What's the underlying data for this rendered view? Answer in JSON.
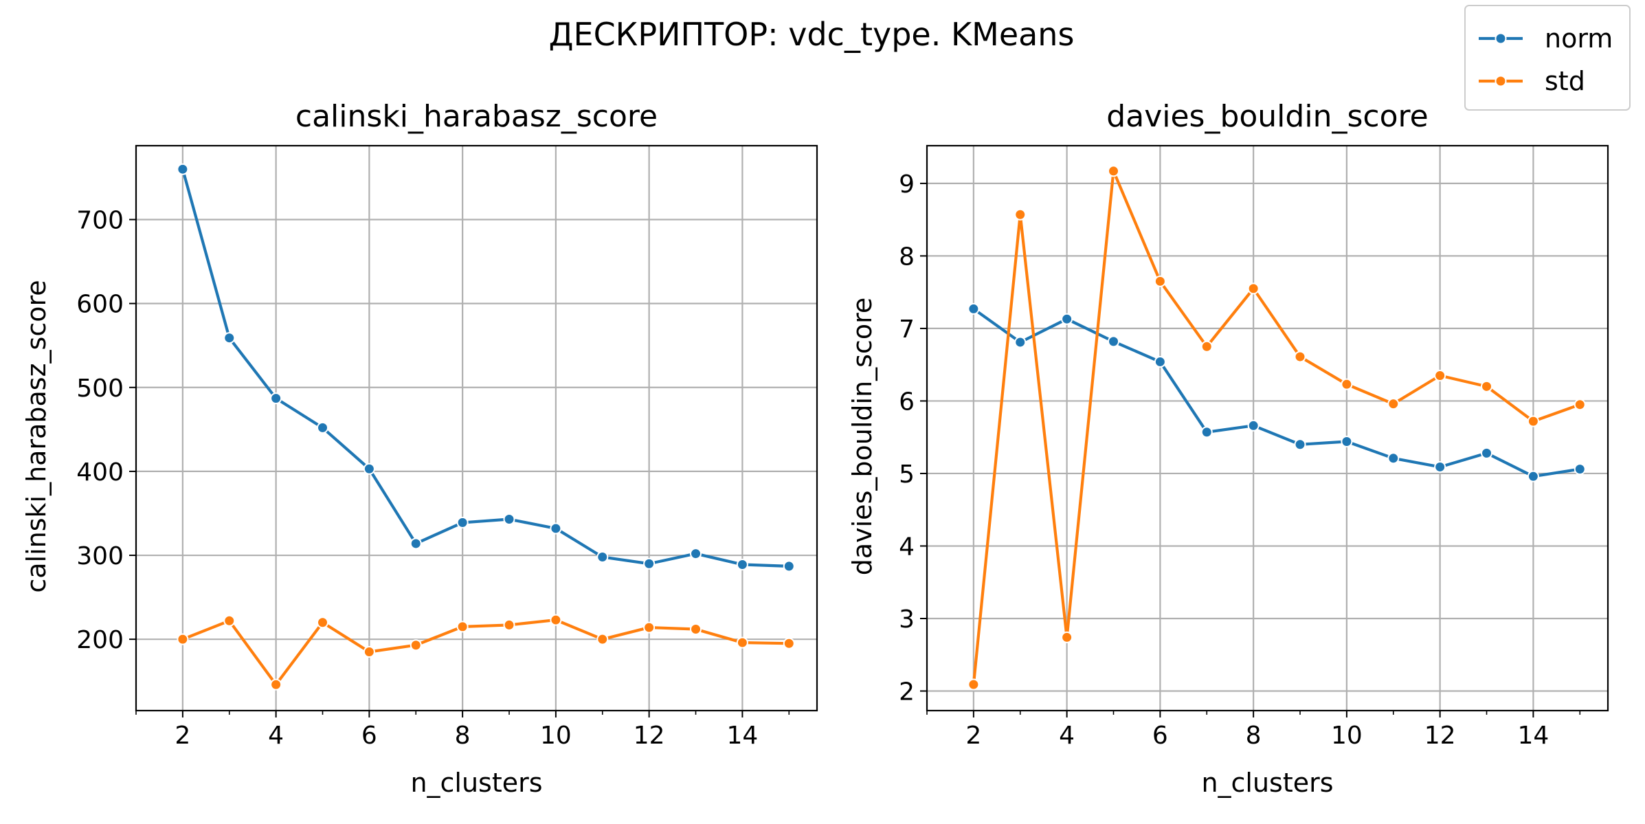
{
  "figure": {
    "suptitle": "ДЕСКРИПТОР: vdc_type. KMeans"
  },
  "colors": {
    "norm": "#1f77b4",
    "std": "#ff7f0e",
    "grid": "#b0b0b0",
    "axis": "#000000"
  },
  "legend": {
    "position": "top-right",
    "entries": [
      "norm",
      "std"
    ]
  },
  "chart_data": [
    {
      "type": "line",
      "title": "calinski_harabasz_score",
      "xlabel": "n_clusters",
      "ylabel": "calinski_harabasz_score",
      "xlim": [
        1,
        15.6
      ],
      "ylim": [
        115,
        788
      ],
      "xticks": [
        2,
        4,
        6,
        8,
        10,
        12,
        14
      ],
      "xminor": [
        1,
        3,
        5,
        7,
        9,
        11,
        13,
        15
      ],
      "yticks": [
        200,
        300,
        400,
        500,
        600,
        700
      ],
      "grid": true,
      "x": [
        2,
        3,
        4,
        5,
        6,
        7,
        8,
        9,
        10,
        11,
        12,
        13,
        14,
        15
      ],
      "series": [
        {
          "name": "norm",
          "values": [
            760,
            559,
            487,
            452,
            403,
            314,
            339,
            343,
            332,
            298,
            290,
            302,
            289,
            287
          ]
        },
        {
          "name": "std",
          "values": [
            200,
            222,
            146,
            220,
            185,
            193,
            215,
            217,
            223,
            200,
            214,
            212,
            196,
            195
          ]
        }
      ]
    },
    {
      "type": "line",
      "title": "davies_bouldin_score",
      "xlabel": "n_clusters",
      "ylabel": "davies_bouldin_score",
      "xlim": [
        1,
        15.6
      ],
      "ylim": [
        1.73,
        9.52
      ],
      "xticks": [
        2,
        4,
        6,
        8,
        10,
        12,
        14
      ],
      "xminor": [
        1,
        3,
        5,
        7,
        9,
        11,
        13,
        15
      ],
      "yticks": [
        2,
        3,
        4,
        5,
        6,
        7,
        8,
        9
      ],
      "grid": true,
      "x": [
        2,
        3,
        4,
        5,
        6,
        7,
        8,
        9,
        10,
        11,
        12,
        13,
        14,
        15
      ],
      "series": [
        {
          "name": "norm",
          "values": [
            7.27,
            6.81,
            7.13,
            6.82,
            6.54,
            5.57,
            5.66,
            5.4,
            5.44,
            5.21,
            5.09,
            5.28,
            4.96,
            5.06
          ]
        },
        {
          "name": "std",
          "values": [
            2.09,
            8.57,
            2.74,
            9.17,
            7.65,
            6.75,
            7.55,
            6.61,
            6.23,
            5.96,
            6.35,
            6.2,
            5.72,
            5.95
          ]
        }
      ]
    }
  ]
}
